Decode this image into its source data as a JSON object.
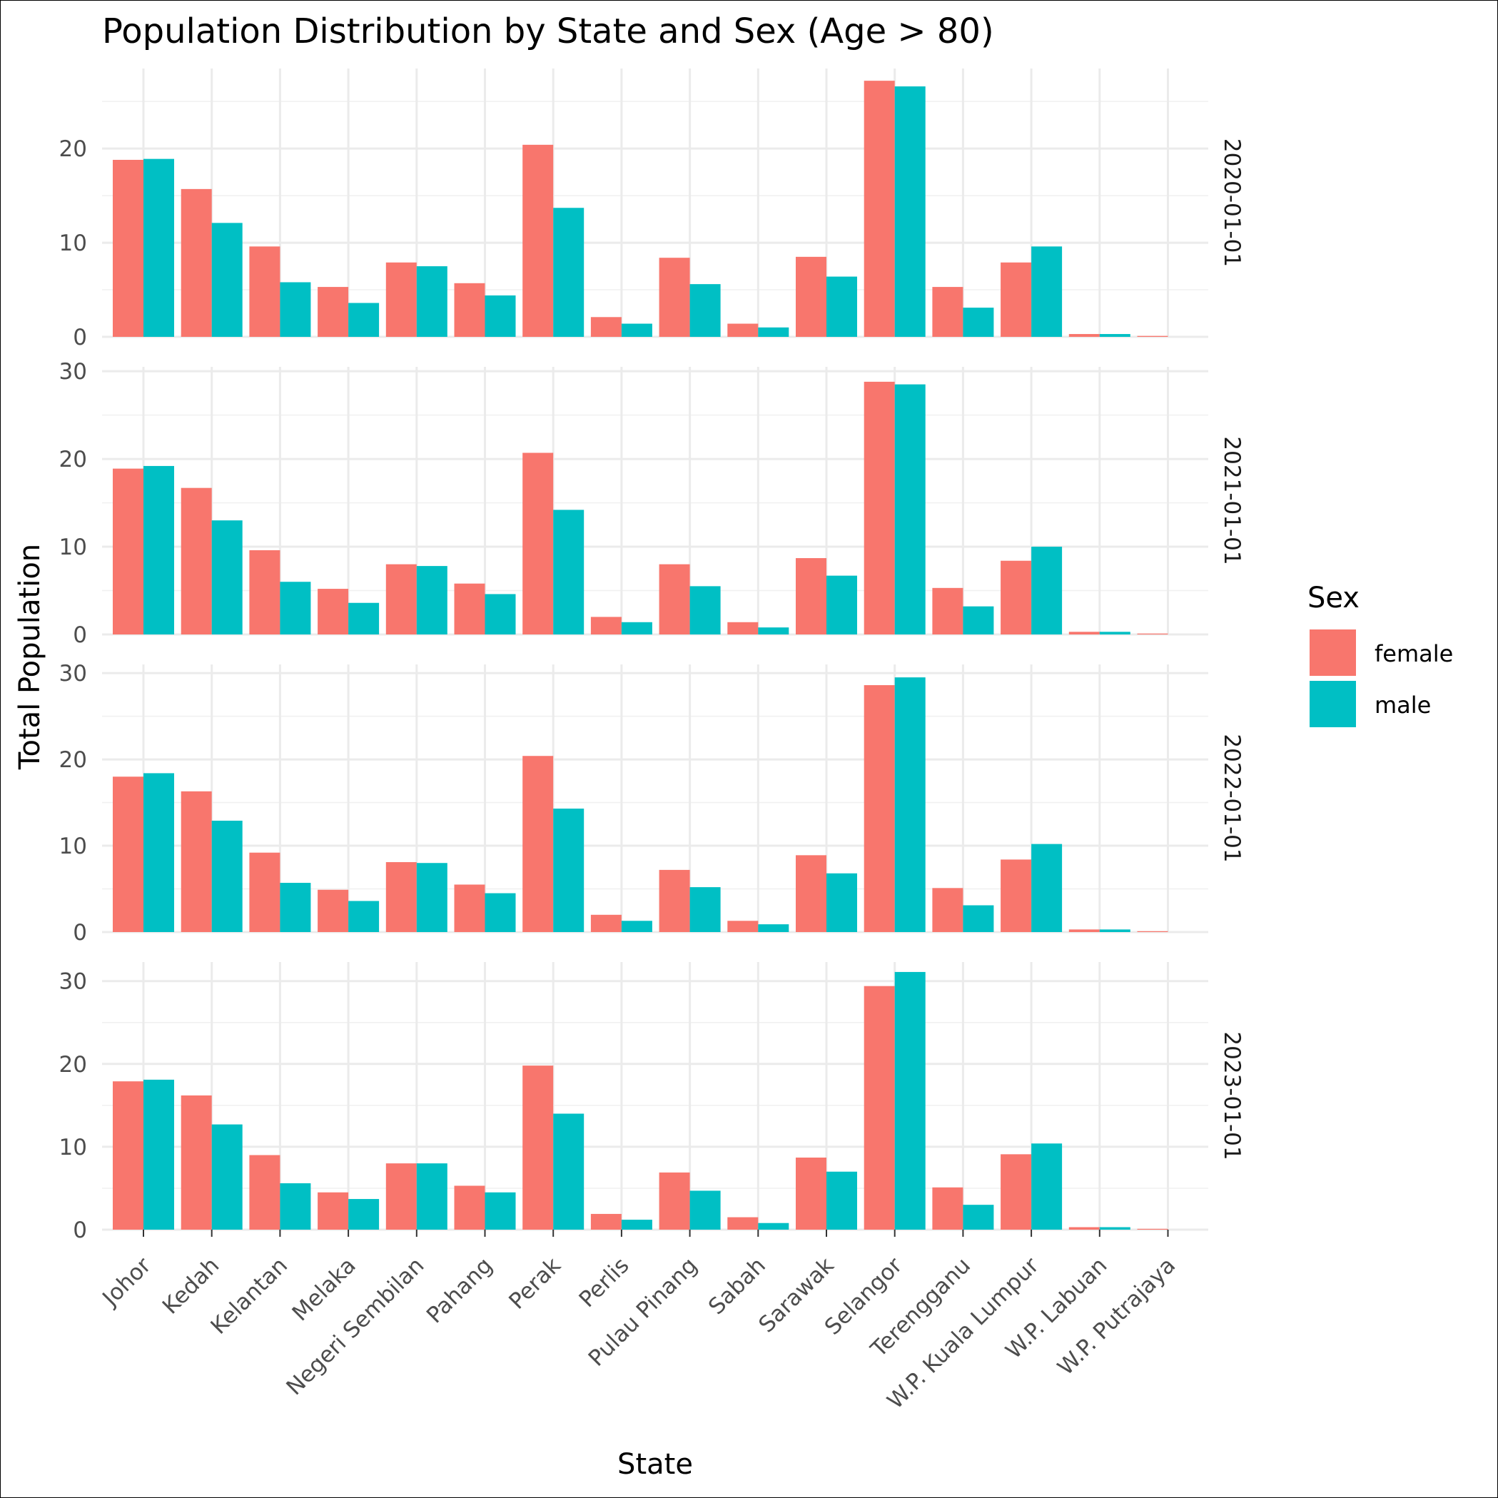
{
  "chart_data": {
    "type": "bar",
    "title": "Population Distribution by State and Sex (Age > 80)",
    "xlabel": "State",
    "ylabel": "Total Population",
    "legend": {
      "title": "Sex",
      "position": "right"
    },
    "grid": true,
    "categories": [
      "Johor",
      "Kedah",
      "Kelantan",
      "Melaka",
      "Negeri Sembilan",
      "Pahang",
      "Perak",
      "Perlis",
      "Pulau Pinang",
      "Sabah",
      "Sarawak",
      "Selangor",
      "Terengganu",
      "W.P. Kuala Lumpur",
      "W.P. Labuan",
      "W.P. Putrajaya"
    ],
    "colors": {
      "female": "#F8766D",
      "male": "#00BFC4"
    },
    "panels": [
      {
        "strip": "2020-01-01",
        "ylim": [
          0,
          28.5
        ],
        "yticks": [
          0,
          10,
          20
        ],
        "series": [
          {
            "name": "female",
            "values": [
              18.8,
              15.7,
              9.6,
              5.3,
              7.9,
              5.7,
              20.4,
              2.1,
              8.4,
              1.4,
              8.5,
              27.2,
              5.3,
              7.9,
              0.3,
              0.1
            ]
          },
          {
            "name": "male",
            "values": [
              18.9,
              12.1,
              5.8,
              3.6,
              7.5,
              4.4,
              13.7,
              1.4,
              5.6,
              1.0,
              6.4,
              26.6,
              3.1,
              9.6,
              0.3,
              0.0
            ]
          }
        ]
      },
      {
        "strip": "2021-01-01",
        "ylim": [
          0,
          30.5
        ],
        "yticks": [
          0,
          10,
          20,
          30
        ],
        "series": [
          {
            "name": "female",
            "values": [
              18.9,
              16.7,
              9.6,
              5.2,
              8.0,
              5.8,
              20.7,
              2.0,
              8.0,
              1.4,
              8.7,
              28.8,
              5.3,
              8.4,
              0.3,
              0.1
            ]
          },
          {
            "name": "male",
            "values": [
              19.2,
              13.0,
              6.0,
              3.6,
              7.8,
              4.6,
              14.2,
              1.4,
              5.5,
              0.8,
              6.7,
              28.5,
              3.2,
              10.0,
              0.3,
              0.0
            ]
          }
        ]
      },
      {
        "strip": "2022-01-01",
        "ylim": [
          0,
          31.0
        ],
        "yticks": [
          0,
          10,
          20,
          30
        ],
        "series": [
          {
            "name": "female",
            "values": [
              18.0,
              16.3,
              9.2,
              4.9,
              8.1,
              5.5,
              20.4,
              2.0,
              7.2,
              1.3,
              8.9,
              28.6,
              5.1,
              8.4,
              0.3,
              0.1
            ]
          },
          {
            "name": "male",
            "values": [
              18.4,
              12.9,
              5.7,
              3.6,
              8.0,
              4.5,
              14.3,
              1.3,
              5.2,
              0.9,
              6.8,
              29.5,
              3.1,
              10.2,
              0.3,
              0.0
            ]
          }
        ]
      },
      {
        "strip": "2023-01-01",
        "ylim": [
          0,
          32.3
        ],
        "yticks": [
          0,
          10,
          20,
          30
        ],
        "series": [
          {
            "name": "female",
            "values": [
              17.9,
              16.2,
              9.0,
              4.5,
              8.0,
              5.3,
              19.8,
              1.9,
              6.9,
              1.5,
              8.7,
              29.4,
              5.1,
              9.1,
              0.3,
              0.1
            ]
          },
          {
            "name": "male",
            "values": [
              18.1,
              12.7,
              5.6,
              3.7,
              8.0,
              4.5,
              14.0,
              1.2,
              4.7,
              0.8,
              7.0,
              31.1,
              3.0,
              10.4,
              0.3,
              0.0
            ]
          }
        ]
      }
    ]
  }
}
